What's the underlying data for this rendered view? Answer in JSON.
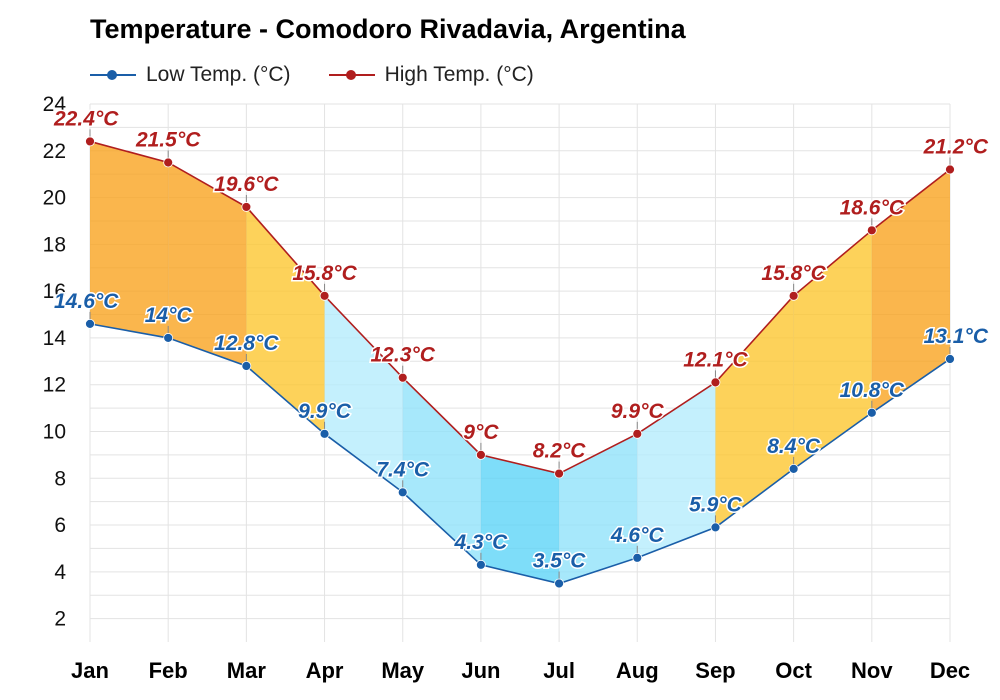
{
  "chart_data": {
    "type": "line",
    "title": "Temperature - Comodoro Rivadavia, Argentina",
    "categories": [
      "Jan",
      "Feb",
      "Mar",
      "Apr",
      "May",
      "Jun",
      "Jul",
      "Aug",
      "Sep",
      "Oct",
      "Nov",
      "Dec"
    ],
    "series": [
      {
        "name": "Low Temp. (°C)",
        "values": [
          14.6,
          14,
          12.8,
          9.9,
          7.4,
          4.3,
          3.5,
          4.6,
          5.9,
          8.4,
          10.8,
          13.1
        ],
        "labels": [
          "14.6°C",
          "14°C",
          "12.8°C",
          "9.9°C",
          "7.4°C",
          "4.3°C",
          "3.5°C",
          "4.6°C",
          "5.9°C",
          "8.4°C",
          "10.8°C",
          "13.1°C"
        ],
        "color": "#1a5ea8"
      },
      {
        "name": "High Temp. (°C)",
        "values": [
          22.4,
          21.5,
          19.6,
          15.8,
          12.3,
          9,
          8.2,
          9.9,
          12.1,
          15.8,
          18.6,
          21.2
        ],
        "labels": [
          "22.4°C",
          "21.5°C",
          "19.6°C",
          "15.8°C",
          "12.3°C",
          "9°C",
          "8.2°C",
          "9.9°C",
          "12.1°C",
          "15.8°C",
          "18.6°C",
          "21.2°C"
        ],
        "color": "#b01e1e"
      }
    ],
    "ylim": [
      1,
      24
    ],
    "yticks": [
      2,
      4,
      6,
      8,
      10,
      12,
      14,
      16,
      18,
      20,
      22,
      24
    ],
    "xlabel": "",
    "ylabel": "",
    "grid": true,
    "legend": "top-left",
    "band_colors": [
      "#f9a11b",
      "#f9a11b",
      "#fcc52b",
      "#b3ecfc",
      "#8ee2fa",
      "#5ad4f7",
      "#8ee2fa",
      "#b3ecfc",
      "#fcc52b",
      "#fcc52b",
      "#f9a11b",
      "#f9a11b"
    ]
  }
}
